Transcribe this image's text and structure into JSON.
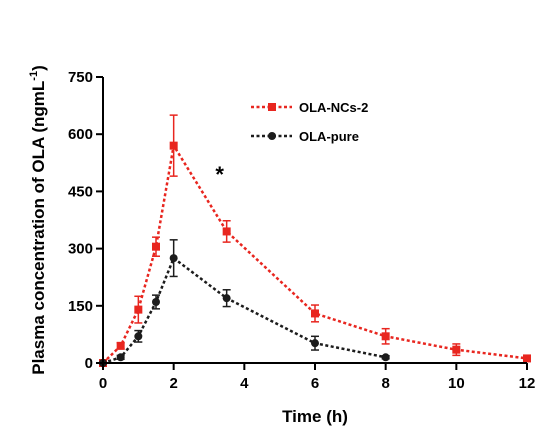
{
  "chart_data": {
    "type": "line",
    "xlabel": "Time (h)",
    "ylabel": "Plasma concentration of OLA (ngmL",
    "ylabel_sup": "-1",
    "ylabel_close": ")",
    "xlim": [
      0,
      12
    ],
    "ylim": [
      0,
      750
    ],
    "xticks": [
      0,
      2,
      4,
      6,
      8,
      10,
      12
    ],
    "yticks": [
      0,
      150,
      300,
      450,
      600,
      750
    ],
    "grid": false,
    "legend_position": "top-right",
    "annotations": [
      {
        "text": "*",
        "x": 3.3,
        "y": 475
      }
    ],
    "series": [
      {
        "name": "OLA-NCs-2",
        "color": "#e8261f",
        "marker": "square",
        "line_style": "dashed",
        "x": [
          0,
          0.5,
          1,
          1.5,
          2,
          3.5,
          6,
          8,
          10,
          12
        ],
        "y": [
          0,
          45,
          140,
          305,
          570,
          345,
          130,
          70,
          35,
          12
        ],
        "error": [
          0,
          8,
          35,
          25,
          80,
          28,
          22,
          20,
          15,
          5
        ]
      },
      {
        "name": "OLA-pure",
        "color": "#1c1c1c",
        "marker": "circle",
        "line_style": "dashed",
        "x": [
          0,
          0.5,
          1,
          1.5,
          2,
          3.5,
          6,
          8
        ],
        "y": [
          0,
          15,
          70,
          160,
          275,
          170,
          52,
          15
        ],
        "error": [
          0,
          5,
          15,
          18,
          48,
          22,
          18,
          4
        ]
      }
    ]
  }
}
